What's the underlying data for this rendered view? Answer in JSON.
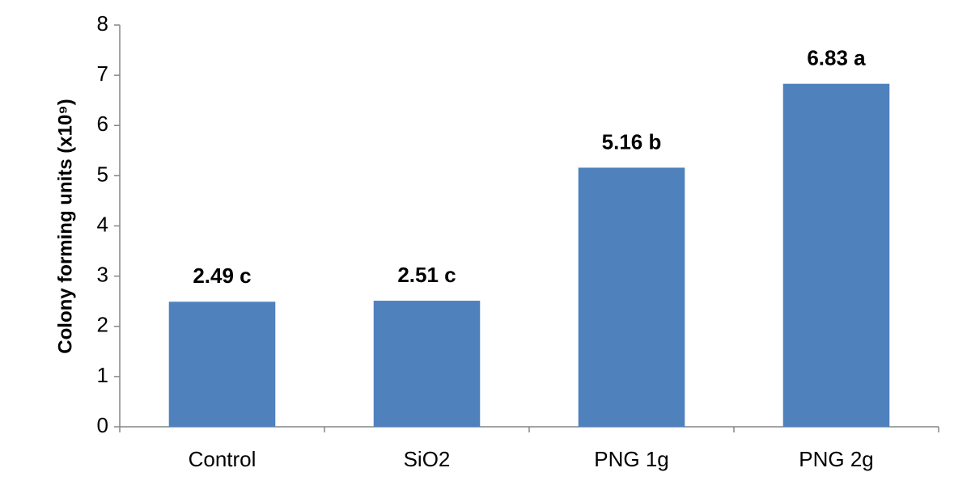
{
  "chart_data": {
    "type": "bar",
    "y_axis_label": "Colony forming units (x10⁹)",
    "categories": [
      "Control",
      "SiO2",
      "PNG 1g",
      "PNG 2g"
    ],
    "values": [
      2.49,
      2.51,
      5.16,
      6.83
    ],
    "value_labels": [
      "2.49 c",
      "2.51 c",
      "5.16 b",
      "6.83 a"
    ],
    "color": "#4f81bd",
    "ylim": [
      0,
      8
    ],
    "yticks": [
      0,
      1,
      2,
      3,
      4,
      5,
      6,
      7,
      8
    ],
    "grid": false
  }
}
